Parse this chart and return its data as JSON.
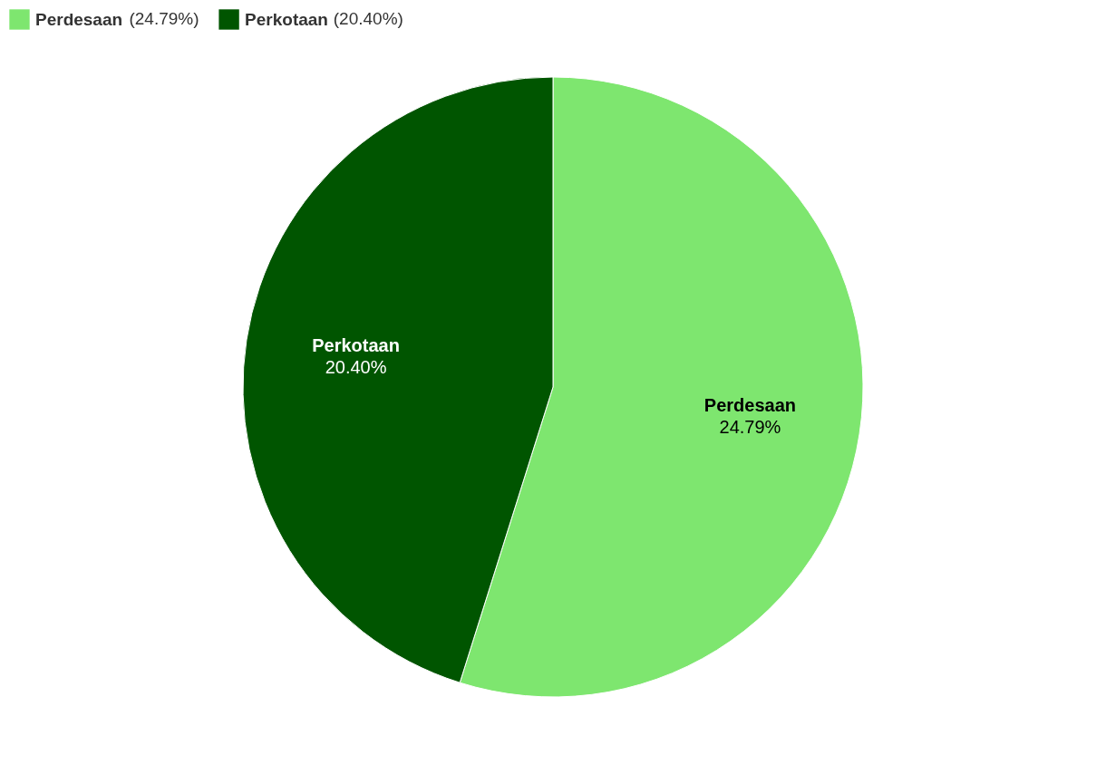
{
  "chart_data": {
    "type": "pie",
    "categories": [
      "Perdesaan",
      "Perkotaan"
    ],
    "values": [
      24.79,
      20.4
    ],
    "value_labels": [
      "24.79%",
      "20.40%"
    ],
    "colors": [
      "#7ee66f",
      "#005500"
    ],
    "legend": "top left",
    "annotations": [
      "(24.79%)",
      "(20.40%)"
    ]
  }
}
